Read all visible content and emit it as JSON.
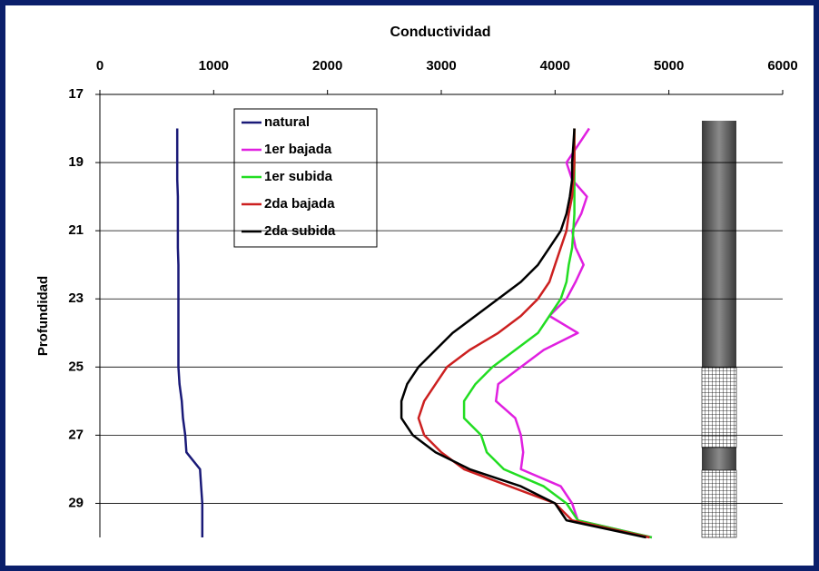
{
  "chart_data": {
    "type": "line",
    "title": "Conductividad",
    "y_label": "Profundidad",
    "depth": [
      18,
      18.5,
      19,
      19.5,
      20,
      20.5,
      21,
      21.5,
      22,
      22.5,
      23,
      23.5,
      24,
      24.5,
      25,
      25.5,
      26,
      26.5,
      27,
      27.5,
      28,
      28.5,
      29,
      29.5,
      30
    ],
    "xlim": [
      0,
      6000
    ],
    "xticks": [
      0,
      1000,
      2000,
      3000,
      4000,
      5000,
      6000
    ],
    "ylim": [
      17,
      30
    ],
    "yticks": [
      17,
      19,
      21,
      23,
      25,
      27,
      29
    ],
    "y_inverted": true,
    "grid": true,
    "legend": "top-left",
    "series": [
      {
        "name": "natural",
        "color": "#1a1a78",
        "values": [
          680,
          680,
          680,
          680,
          685,
          685,
          685,
          685,
          690,
          690,
          690,
          690,
          690,
          690,
          690,
          700,
          720,
          730,
          750,
          760,
          880,
          890,
          900,
          900,
          900
        ]
      },
      {
        "name": "1er bajada",
        "color": "#e020e0",
        "values": [
          4300,
          4200,
          4100,
          4150,
          4280,
          4230,
          4150,
          4180,
          4250,
          4180,
          4100,
          3950,
          4200,
          3900,
          3700,
          3500,
          3480,
          3650,
          3700,
          3720,
          3700,
          4050,
          4150,
          4200,
          4850
        ]
      },
      {
        "name": "1er subida",
        "color": "#22dd22",
        "values": [
          4170,
          4170,
          4170,
          4170,
          4170,
          4170,
          4160,
          4150,
          4120,
          4100,
          4050,
          3950,
          3850,
          3650,
          3450,
          3300,
          3200,
          3200,
          3350,
          3400,
          3550,
          3900,
          4100,
          4200,
          4850
        ]
      },
      {
        "name": "2da bajada",
        "color": "#cc2020",
        "values": [
          4170,
          4170,
          4170,
          4160,
          4150,
          4120,
          4100,
          4050,
          4000,
          3950,
          3850,
          3700,
          3500,
          3250,
          3050,
          2950,
          2850,
          2800,
          2850,
          3000,
          3200,
          3600,
          4000,
          4150,
          4830
        ]
      },
      {
        "name": "2da subida",
        "color": "#000000",
        "values": [
          4170,
          4160,
          4150,
          4150,
          4130,
          4100,
          4050,
          3950,
          3850,
          3700,
          3500,
          3300,
          3100,
          2950,
          2800,
          2700,
          2650,
          2650,
          2750,
          2950,
          3250,
          3700,
          4000,
          4100,
          4800
        ]
      }
    ]
  }
}
